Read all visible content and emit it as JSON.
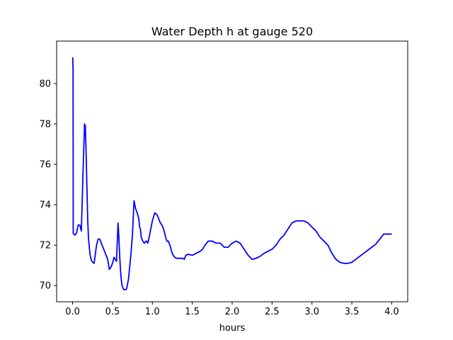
{
  "chart_data": {
    "type": "line",
    "title": "Water Depth h at gauge 520",
    "xlabel": "hours",
    "ylabel": "",
    "xlim": [
      -0.2,
      4.2
    ],
    "ylim": [
      69.2,
      82.1
    ],
    "xticks": [
      0.0,
      0.5,
      1.0,
      1.5,
      2.0,
      2.5,
      3.0,
      3.5,
      4.0
    ],
    "xtick_labels": [
      "0.0",
      "0.5",
      "1.0",
      "1.5",
      "2.0",
      "2.5",
      "3.0",
      "3.5",
      "4.0"
    ],
    "yticks": [
      70,
      72,
      74,
      76,
      78,
      80
    ],
    "ytick_labels": [
      "70",
      "72",
      "74",
      "76",
      "78",
      "80"
    ],
    "grid": false,
    "series": [
      {
        "color": "#0000ff",
        "x": [
          0.0,
          0.003,
          0.006,
          0.008,
          0.012,
          0.03,
          0.05,
          0.07,
          0.09,
          0.11,
          0.13,
          0.15,
          0.16,
          0.17,
          0.18,
          0.19,
          0.2,
          0.22,
          0.24,
          0.27,
          0.3,
          0.32,
          0.34,
          0.36,
          0.38,
          0.4,
          0.42,
          0.44,
          0.46,
          0.48,
          0.5,
          0.52,
          0.55,
          0.57,
          0.58,
          0.59,
          0.6,
          0.61,
          0.62,
          0.63,
          0.64,
          0.65,
          0.66,
          0.67,
          0.68,
          0.7,
          0.73,
          0.75,
          0.77,
          0.79,
          0.81,
          0.83,
          0.84,
          0.85,
          0.86,
          0.88,
          0.9,
          0.92,
          0.93,
          0.94,
          0.95,
          0.97,
          1.0,
          1.03,
          1.06,
          1.08,
          1.1,
          1.12,
          1.14,
          1.16,
          1.18,
          1.2,
          1.22,
          1.24,
          1.26,
          1.28,
          1.3,
          1.32,
          1.34,
          1.36,
          1.38,
          1.4,
          1.42,
          1.45,
          1.5,
          1.55,
          1.6,
          1.63,
          1.66,
          1.7,
          1.75,
          1.8,
          1.85,
          1.9,
          1.95,
          2.0,
          2.05,
          2.1,
          2.15,
          2.2,
          2.25,
          2.3,
          2.35,
          2.4,
          2.45,
          2.5,
          2.55,
          2.6,
          2.65,
          2.7,
          2.75,
          2.8,
          2.85,
          2.9,
          2.95,
          3.0,
          3.05,
          3.1,
          3.15,
          3.2,
          3.25,
          3.3,
          3.35,
          3.4,
          3.45,
          3.5,
          3.55,
          3.6,
          3.65,
          3.7,
          3.75,
          3.8,
          3.85,
          3.9,
          3.95,
          4.0
        ],
        "y": [
          81.3,
          81.2,
          80.6,
          72.6,
          72.55,
          72.5,
          72.6,
          73.0,
          73.0,
          72.7,
          75.5,
          78.0,
          77.9,
          76.5,
          74.8,
          73.2,
          72.3,
          71.5,
          71.2,
          71.1,
          72.0,
          72.3,
          72.3,
          72.1,
          71.9,
          71.7,
          71.5,
          71.3,
          70.8,
          70.9,
          71.1,
          71.4,
          71.2,
          73.1,
          72.4,
          71.5,
          70.8,
          70.3,
          70.0,
          69.9,
          69.8,
          69.8,
          69.8,
          69.8,
          69.9,
          70.3,
          71.5,
          72.5,
          74.2,
          73.8,
          73.6,
          73.3,
          72.9,
          72.8,
          72.4,
          72.2,
          72.1,
          72.2,
          72.2,
          72.1,
          72.2,
          72.6,
          73.2,
          73.6,
          73.5,
          73.3,
          73.1,
          73.0,
          72.8,
          72.5,
          72.2,
          72.2,
          72.0,
          71.7,
          71.5,
          71.4,
          71.35,
          71.35,
          71.35,
          71.35,
          71.35,
          71.3,
          71.5,
          71.55,
          71.5,
          71.6,
          71.7,
          71.8,
          72.0,
          72.2,
          72.2,
          72.1,
          72.1,
          71.9,
          71.9,
          72.1,
          72.2,
          72.1,
          71.8,
          71.5,
          71.3,
          71.35,
          71.45,
          71.6,
          71.7,
          71.8,
          72.0,
          72.3,
          72.5,
          72.8,
          73.1,
          73.2,
          73.2,
          73.2,
          73.1,
          72.9,
          72.7,
          72.4,
          72.2,
          72.0,
          71.6,
          71.3,
          71.15,
          71.1,
          71.1,
          71.15,
          71.3,
          71.45,
          71.6,
          71.75,
          71.9,
          72.05,
          72.3,
          72.55,
          72.55,
          72.55
        ]
      }
    ]
  }
}
